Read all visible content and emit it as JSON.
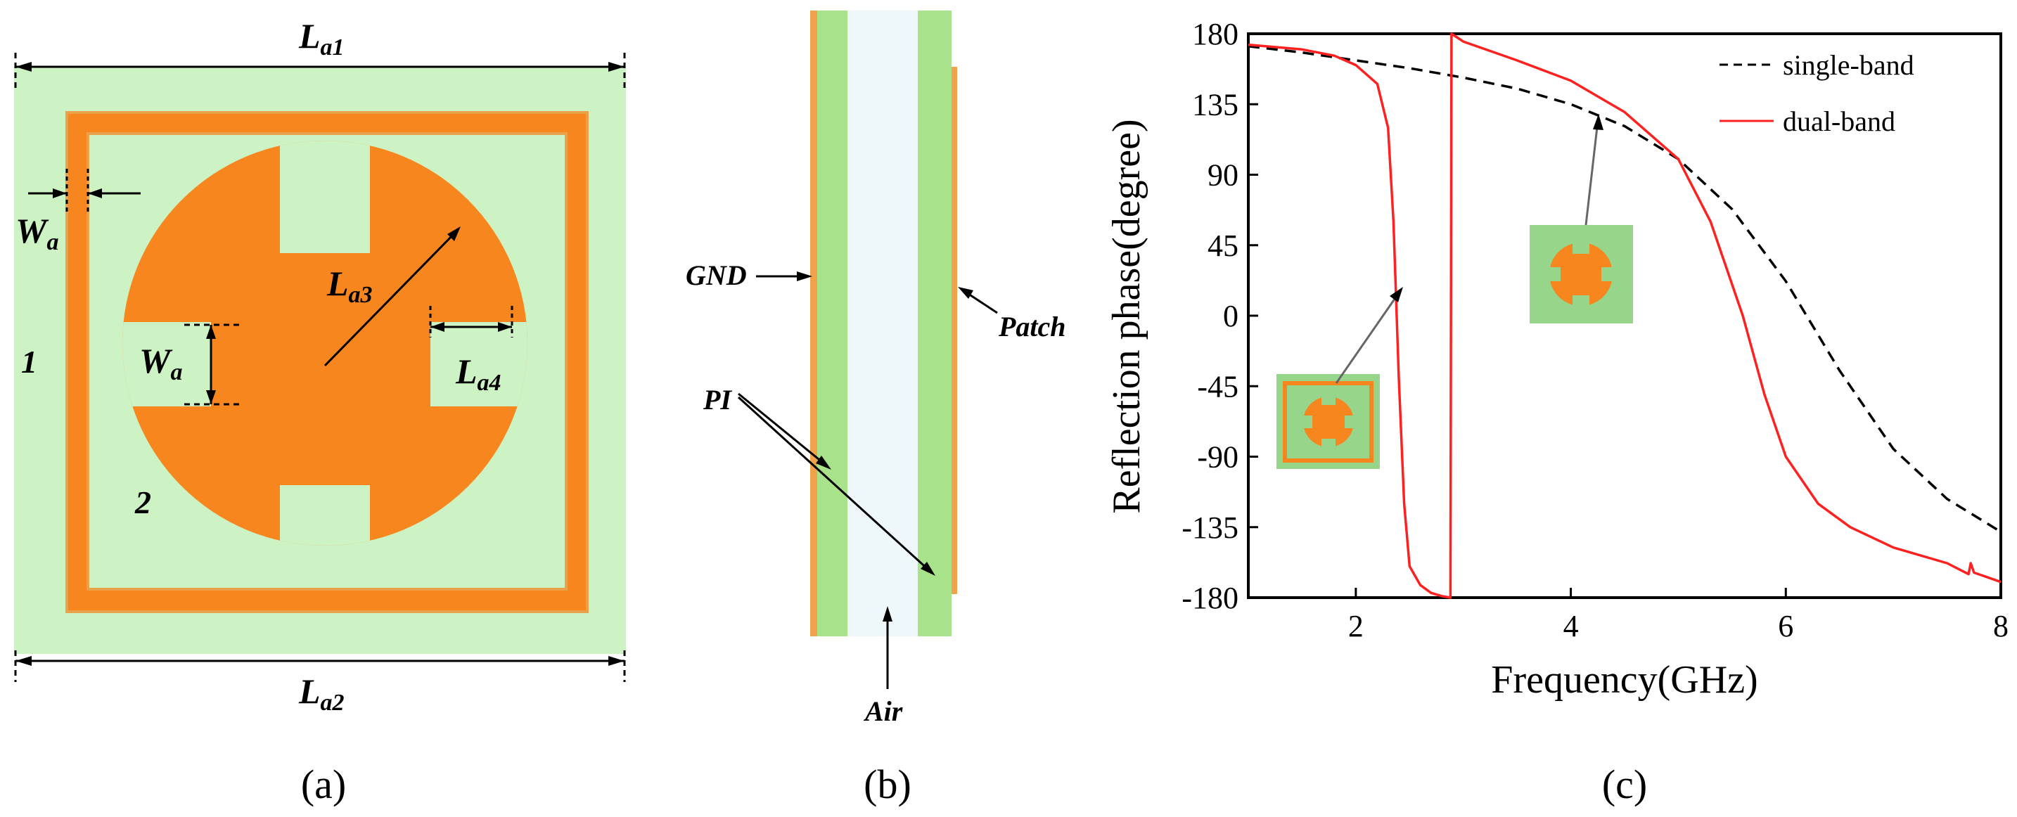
{
  "figure": {
    "panel_a": {
      "caption": "(a)",
      "labels": {
        "La1": {
          "main": "L",
          "sub": "a1"
        },
        "La2": {
          "main": "L",
          "sub": "a2"
        },
        "La3": {
          "main": "L",
          "sub": "a3"
        },
        "La4": {
          "main": "L",
          "sub": "a4"
        },
        "Wa_left": {
          "main": "W",
          "sub": "a"
        },
        "Wa_inner": {
          "main": "W",
          "sub": "a"
        }
      },
      "region_1": "1",
      "region_2": "2",
      "colors": {
        "substrate": "#cdf2c4",
        "metal": "#f7861f",
        "frame_edge": "#eaa24a"
      }
    },
    "panel_b": {
      "caption": "(b)",
      "labels": {
        "gnd": "GND",
        "patch": "Patch",
        "pi": "PI",
        "air": "Air"
      },
      "colors": {
        "pi": "#a8e28a",
        "air": "#eef8fb",
        "metal": "#f0a34a"
      }
    },
    "panel_c": {
      "caption": "(c)"
    }
  },
  "chart_data": {
    "type": "line",
    "xlabel": "Frequency(GHz)",
    "ylabel": "Reflection phase(degree)",
    "xlim": [
      1,
      8
    ],
    "ylim": [
      -180,
      180
    ],
    "xticks": [
      2,
      4,
      6,
      8
    ],
    "yticks": [
      180,
      135,
      90,
      45,
      0,
      -45,
      -90,
      -135,
      -180
    ],
    "legend_position": "top-right",
    "series": [
      {
        "name": "single-band",
        "style": "dashed",
        "color": "#000000",
        "x": [
          1.0,
          1.5,
          2.0,
          2.5,
          3.0,
          3.5,
          4.0,
          4.5,
          5.0,
          5.5,
          6.0,
          6.5,
          7.0,
          7.5,
          8.0
        ],
        "y": [
          172,
          168,
          163,
          158,
          152,
          145,
          135,
          121,
          100,
          68,
          22,
          -35,
          -85,
          -117,
          -138
        ]
      },
      {
        "name": "dual-band",
        "style": "solid",
        "color": "#ff2020",
        "x": [
          1.0,
          1.5,
          1.8,
          2.0,
          2.2,
          2.3,
          2.35,
          2.4,
          2.45,
          2.5,
          2.6,
          2.7,
          2.8,
          2.88,
          2.89,
          3.0,
          3.5,
          4.0,
          4.5,
          5.0,
          5.3,
          5.6,
          5.8,
          6.0,
          6.3,
          6.6,
          7.0,
          7.5,
          7.7,
          7.72,
          7.75,
          8.0
        ],
        "y": [
          173,
          170,
          166,
          160,
          148,
          120,
          60,
          -40,
          -120,
          -160,
          -172,
          -177,
          -179,
          -180,
          180,
          175,
          163,
          150,
          130,
          100,
          60,
          0,
          -50,
          -90,
          -120,
          -135,
          -148,
          -158,
          -165,
          -158,
          -164,
          -170
        ]
      }
    ],
    "insets": [
      {
        "label": "single-band unit cell",
        "arrow_to_series": "single-band"
      },
      {
        "label": "dual-band unit cell",
        "arrow_to_series": "dual-band"
      }
    ]
  }
}
